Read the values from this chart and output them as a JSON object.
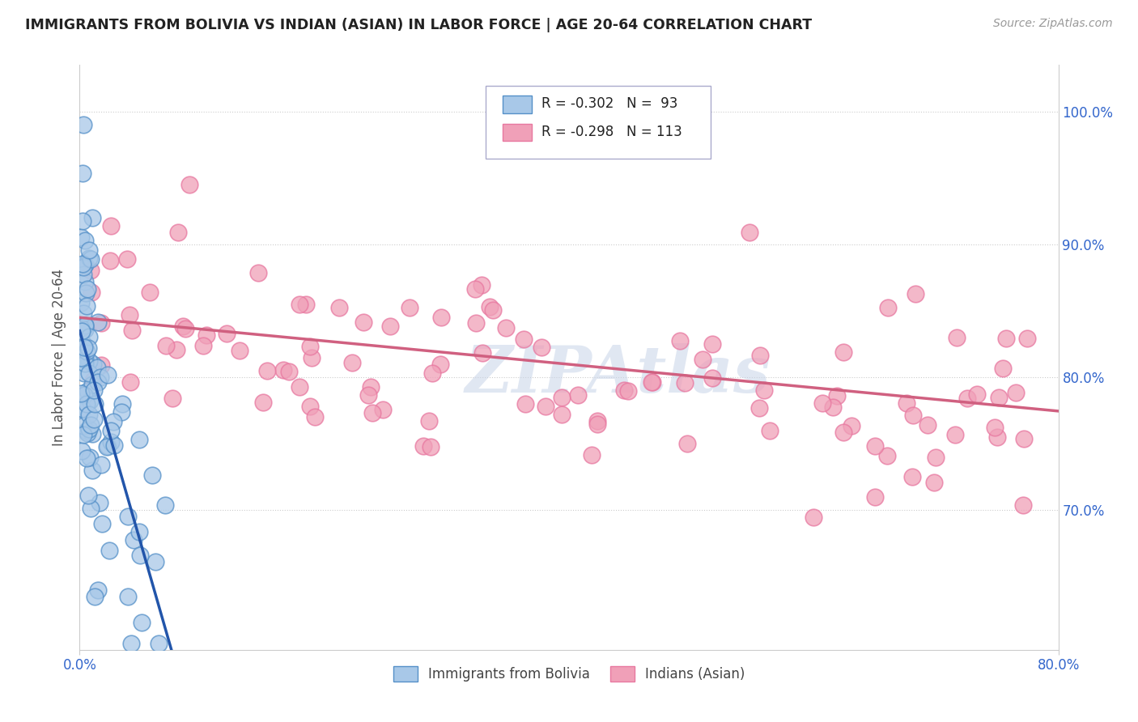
{
  "title": "IMMIGRANTS FROM BOLIVIA VS INDIAN (ASIAN) IN LABOR FORCE | AGE 20-64 CORRELATION CHART",
  "source": "Source: ZipAtlas.com",
  "ylabel": "In Labor Force | Age 20-64",
  "legend1_label": "R = -0.302   N =  93",
  "legend2_label": "R = -0.298   N = 113",
  "legend_bolivia": "Immigrants from Bolivia",
  "legend_indian": "Indians (Asian)",
  "watermark": "ZIPAtlas",
  "bolivia_color": "#a8c8e8",
  "indian_color": "#f0a0b8",
  "bolivia_edge": "#5590c8",
  "indian_edge": "#e878a0",
  "bolivia_trend_color": "#2255aa",
  "indian_trend_color": "#d06080",
  "xlim": [
    0.0,
    0.8
  ],
  "ylim": [
    0.595,
    1.035
  ],
  "ytick_vals": [
    0.7,
    0.8,
    0.9,
    1.0
  ],
  "bolivia_intercept": 0.835,
  "bolivia_slope": -3.2,
  "bolivia_trend_xmax": 0.08,
  "bolivia_dash_xstart": 0.078,
  "bolivia_dash_xend": 0.55,
  "indian_intercept": 0.845,
  "indian_slope": -0.088
}
